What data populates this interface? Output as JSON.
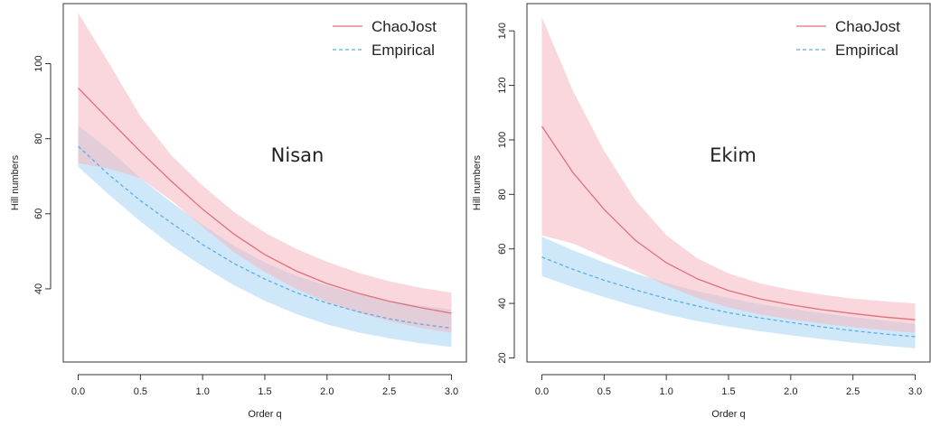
{
  "colors": {
    "chaojost_line": "#e0707c",
    "chaojost_band": "#f4b6c0",
    "empirical_line": "#5aaee8",
    "empirical_band": "#b6dcf6",
    "axis": "#333333"
  },
  "chart_data": [
    {
      "type": "line",
      "title": "Nisan",
      "xlabel": "Order q",
      "ylabel": "Hill numbers",
      "xlim": [
        -0.12,
        3.12
      ],
      "ylim": [
        20.5,
        116
      ],
      "xticks": [
        "0.0",
        "0.5",
        "1.0",
        "1.5",
        "2.0",
        "2.5",
        "3.0"
      ],
      "yticks": [
        "40",
        "60",
        "80",
        "100"
      ],
      "legend": {
        "position": "top-right",
        "entries": [
          "ChaoJost",
          "Empirical"
        ]
      },
      "x": [
        0,
        0.25,
        0.5,
        0.75,
        1.0,
        1.25,
        1.5,
        1.75,
        2.0,
        2.25,
        2.5,
        2.75,
        3.0
      ],
      "series": [
        {
          "name": "ChaoJost",
          "style": "solid",
          "values": [
            93.5,
            85.0,
            76.6,
            68.6,
            61.2,
            54.6,
            49.1,
            44.8,
            41.4,
            38.8,
            36.7,
            35.0,
            33.5
          ],
          "lower": [
            73.5,
            72.0,
            69.5,
            63.5,
            56.5,
            49.8,
            44.5,
            40.0,
            36.5,
            33.6,
            31.4,
            29.6,
            28.3
          ],
          "upper": [
            113.5,
            100.0,
            86.0,
            75.5,
            67.5,
            60.5,
            55.0,
            50.7,
            47.2,
            44.3,
            42.0,
            40.3,
            39.0
          ]
        },
        {
          "name": "Empirical",
          "style": "dashed",
          "values": [
            78.0,
            70.3,
            63.5,
            57.5,
            51.8,
            46.8,
            42.6,
            39.0,
            36.2,
            33.9,
            32.0,
            30.6,
            29.5
          ],
          "lower": [
            72.5,
            65.0,
            58.0,
            51.5,
            46.0,
            41.0,
            36.8,
            33.3,
            30.5,
            28.4,
            26.8,
            25.5,
            24.5
          ],
          "upper": [
            83.5,
            77.0,
            69.5,
            63.0,
            57.0,
            51.5,
            47.0,
            43.5,
            40.8,
            38.6,
            36.8,
            35.5,
            34.5
          ]
        }
      ]
    },
    {
      "type": "line",
      "title": "Ekim",
      "xlabel": "Order q",
      "ylabel": "Hill numbers",
      "xlim": [
        -0.12,
        3.12
      ],
      "ylim": [
        18.5,
        150
      ],
      "xticks": [
        "0.0",
        "0.5",
        "1.0",
        "1.5",
        "2.0",
        "2.5",
        "3.0"
      ],
      "yticks": [
        "20",
        "40",
        "60",
        "80",
        "100",
        "120",
        "140"
      ],
      "legend": {
        "position": "top-right",
        "entries": [
          "ChaoJost",
          "Empirical"
        ]
      },
      "x": [
        0,
        0.25,
        0.5,
        0.75,
        1.0,
        1.25,
        1.5,
        1.75,
        2.0,
        2.25,
        2.5,
        2.75,
        3.0
      ],
      "series": [
        {
          "name": "ChaoJost",
          "style": "solid",
          "values": [
            105.0,
            88.0,
            74.5,
            63.2,
            54.9,
            49.0,
            44.7,
            41.7,
            39.5,
            37.7,
            36.3,
            35.0,
            34.0
          ],
          "lower": [
            65.0,
            62.0,
            57.0,
            52.0,
            46.5,
            42.0,
            38.5,
            36.0,
            34.2,
            32.6,
            31.3,
            30.2,
            29.2
          ],
          "upper": [
            145.0,
            118.0,
            96.0,
            78.0,
            65.0,
            56.5,
            51.0,
            47.4,
            45.0,
            43.2,
            41.8,
            40.8,
            40.0
          ]
        },
        {
          "name": "Empirical",
          "style": "dashed",
          "values": [
            57.0,
            52.5,
            48.5,
            45.0,
            41.8,
            39.0,
            36.6,
            34.7,
            33.0,
            31.4,
            30.0,
            28.8,
            27.8
          ],
          "lower": [
            50.0,
            46.0,
            42.3,
            39.0,
            36.0,
            33.5,
            31.5,
            29.8,
            28.3,
            26.9,
            25.6,
            24.5,
            23.5
          ],
          "upper": [
            64.5,
            59.5,
            55.0,
            51.0,
            47.5,
            44.5,
            42.0,
            39.8,
            38.0,
            36.5,
            35.0,
            33.7,
            32.5
          ]
        }
      ]
    }
  ]
}
